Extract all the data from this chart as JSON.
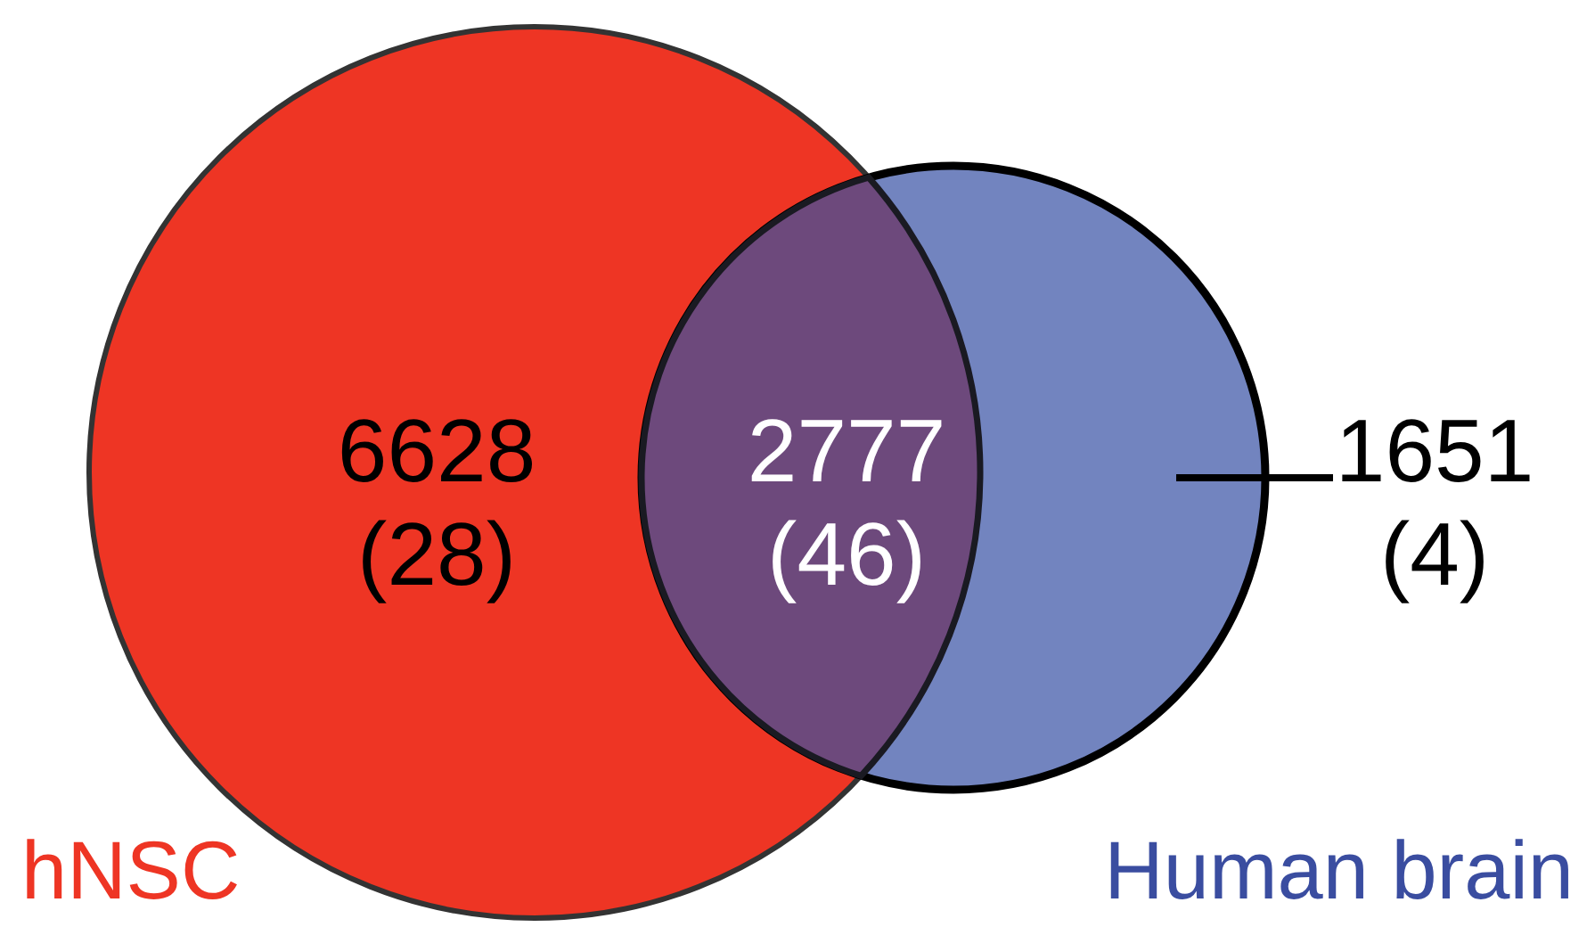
{
  "chart_data": {
    "type": "other",
    "categories": [
      "hNSC",
      null,
      "Human brain"
    ],
    "colors": [
      "#ee3524",
      "#6d497c",
      "#7284bf"
    ],
    "values": [
      6628,
      2777,
      1651
    ],
    "data_labels": true,
    "annotations": [
      "(28)",
      "(46)",
      "(4)"
    ]
  }
}
